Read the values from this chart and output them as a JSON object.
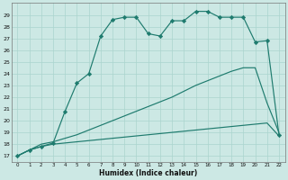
{
  "xlabel": "Humidex (Indice chaleur)",
  "bg_color": "#cce8e4",
  "line_color": "#1e7b6e",
  "grid_color": "#aad4ce",
  "xlim": [
    -0.5,
    22.5
  ],
  "ylim": [
    16.5,
    30.0
  ],
  "yticks": [
    17,
    18,
    19,
    20,
    21,
    22,
    23,
    24,
    25,
    26,
    27,
    28,
    29
  ],
  "xticks": [
    0,
    1,
    2,
    3,
    4,
    5,
    6,
    7,
    8,
    9,
    10,
    11,
    12,
    13,
    14,
    15,
    16,
    17,
    18,
    19,
    20,
    21,
    22
  ],
  "line1_x": [
    0,
    1,
    2,
    3,
    4,
    5,
    6,
    7,
    8,
    9,
    10,
    11,
    12,
    13,
    14,
    15,
    16,
    17,
    18,
    19,
    20,
    21,
    22
  ],
  "line1_y": [
    17.0,
    17.5,
    17.8,
    18.0,
    18.1,
    18.2,
    18.3,
    18.4,
    18.5,
    18.6,
    18.7,
    18.8,
    18.9,
    19.0,
    19.1,
    19.2,
    19.3,
    19.4,
    19.5,
    19.6,
    19.7,
    19.8,
    18.7
  ],
  "line2_x": [
    0,
    1,
    2,
    3,
    4,
    5,
    6,
    7,
    8,
    9,
    10,
    11,
    12,
    13,
    14,
    15,
    16,
    17,
    18,
    19,
    20,
    21,
    22
  ],
  "line2_y": [
    17.0,
    17.5,
    18.0,
    18.2,
    18.5,
    18.8,
    19.2,
    19.6,
    20.0,
    20.4,
    20.8,
    21.2,
    21.6,
    22.0,
    22.5,
    23.0,
    23.4,
    23.8,
    24.2,
    24.5,
    24.5,
    21.5,
    19.0
  ],
  "line3_x": [
    0,
    1,
    2,
    3,
    4,
    5,
    6,
    7,
    8,
    9,
    10,
    11,
    12,
    13,
    14,
    15,
    16,
    17,
    18,
    19,
    20,
    21,
    22
  ],
  "line3_y": [
    17.0,
    17.5,
    17.8,
    18.1,
    20.8,
    23.2,
    24.0,
    27.2,
    28.6,
    28.8,
    28.8,
    27.4,
    27.2,
    28.5,
    28.5,
    29.3,
    29.3,
    28.8,
    28.8,
    28.8,
    26.7,
    26.8,
    18.8
  ],
  "marker": "D",
  "markersize": 2.2,
  "linewidth": 0.85
}
